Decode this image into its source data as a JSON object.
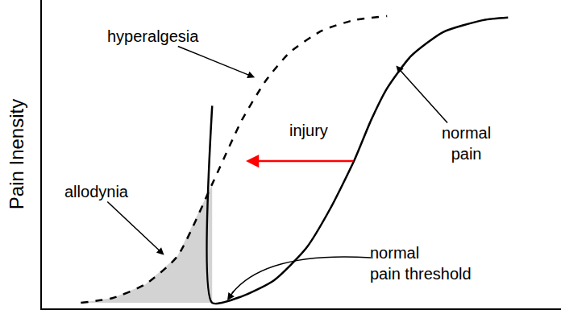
{
  "chart_data": {
    "type": "line",
    "y_label": "Pain Inensity",
    "xlim": [
      0,
      100
    ],
    "ylim": [
      0,
      100
    ],
    "xticks": [],
    "yticks": [],
    "tick_labels": false,
    "grid": false,
    "series": [
      {
        "type": "area",
        "color": "#d3d3d3",
        "x": [
          7.5,
          13.7,
          19.9,
          26.1,
          32.8,
          32.8
        ],
        "values": [
          1.8,
          3.4,
          7.8,
          16.9,
          40.3,
          1.8
        ]
      },
      {
        "type": "line",
        "color": "#000000",
        "line_style": "solid",
        "x": [
          32.8,
          32.8,
          38.5,
          44.7,
          50.9,
          55.6,
          60.2,
          63.4,
          66.5,
          71.1,
          77.3,
          85.1,
          89.8
        ],
        "values": [
          65.7,
          1.8,
          3.9,
          9.1,
          19.5,
          32.5,
          48.1,
          61.0,
          71.4,
          81.8,
          89.6,
          93.5,
          94.3
        ]
      },
      {
        "type": "line",
        "color": "#000000",
        "line_style": "dash",
        "x": [
          7.5,
          13.7,
          19.9,
          26.1,
          32.8,
          38.5,
          43.2,
          47.8,
          54.0,
          60.2,
          66.5
        ],
        "values": [
          1.8,
          3.4,
          7.8,
          16.9,
          40.3,
          61.0,
          74.0,
          83.1,
          90.1,
          93.5,
          94.8
        ]
      }
    ],
    "annotations": [
      {
        "text": "hyperalgesia"
      },
      {
        "text": "injury",
        "color": "#ff0000"
      },
      {
        "text": "normal\npain"
      },
      {
        "text": "allodynia"
      },
      {
        "text": "normal\npain threshold"
      }
    ]
  }
}
